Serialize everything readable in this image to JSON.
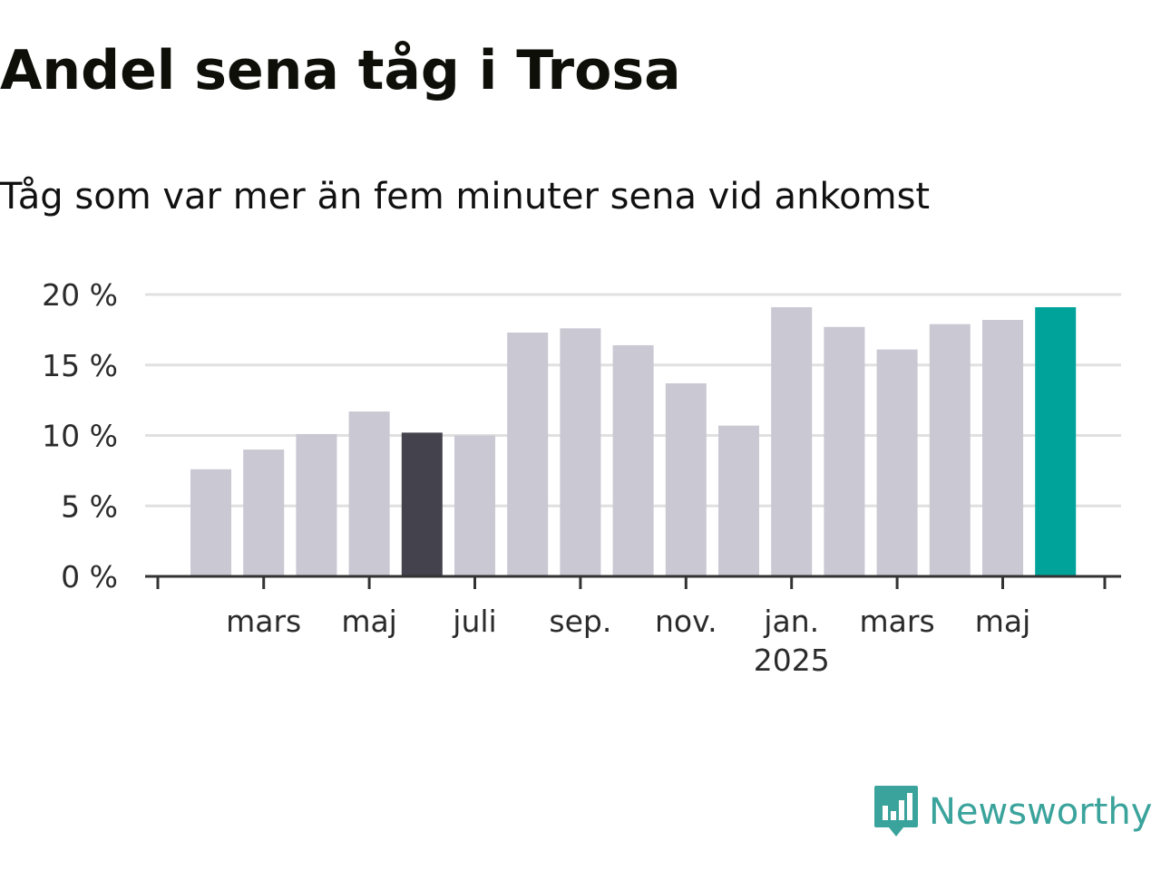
{
  "title": "Andel sena tåg i Trosa",
  "subtitle": "Tåg som var mer än fem minuter sena vid ankomst",
  "brand": {
    "name": "Newsworthy",
    "color": "#3aa39b"
  },
  "colors": {
    "bar_default": "#c9c8d3",
    "bar_highlight_dark": "#43424d",
    "bar_latest": "#00a39a",
    "grid": "#e0e0e0",
    "axis": "#333333"
  },
  "chart_data": {
    "type": "bar",
    "ylabel": "",
    "xlabel": "",
    "ylim": [
      0,
      20
    ],
    "y_ticks": [
      "0 %",
      "5 %",
      "10 %",
      "15 %",
      "20 %"
    ],
    "y_tick_values": [
      0,
      5,
      10,
      15,
      20
    ],
    "grid": true,
    "categories": [
      "feb 2024",
      "mars 2024",
      "apr 2024",
      "maj 2024",
      "juni 2024",
      "juli 2024",
      "aug 2024",
      "sep 2024",
      "okt 2024",
      "nov 2024",
      "dec 2024",
      "jan 2025",
      "feb 2025",
      "mars 2025",
      "apr 2025",
      "maj 2025",
      "juni 2025"
    ],
    "values": [
      7.6,
      9.0,
      10.1,
      11.7,
      10.2,
      10.0,
      17.3,
      17.6,
      16.4,
      13.7,
      10.7,
      19.1,
      17.7,
      16.1,
      17.9,
      18.2,
      19.1
    ],
    "highlight": {
      "dark_index": 4,
      "latest_index": 16
    },
    "x_tick_labels": [
      {
        "text": "mars",
        "index": 1
      },
      {
        "text": "maj",
        "index": 3
      },
      {
        "text": "juli",
        "index": 5
      },
      {
        "text": "sep.",
        "index": 7
      },
      {
        "text": "nov.",
        "index": 9
      },
      {
        "text": "jan.",
        "index": 11,
        "sub": "2025"
      },
      {
        "text": "mars",
        "index": 13
      },
      {
        "text": "maj",
        "index": 15
      }
    ]
  }
}
